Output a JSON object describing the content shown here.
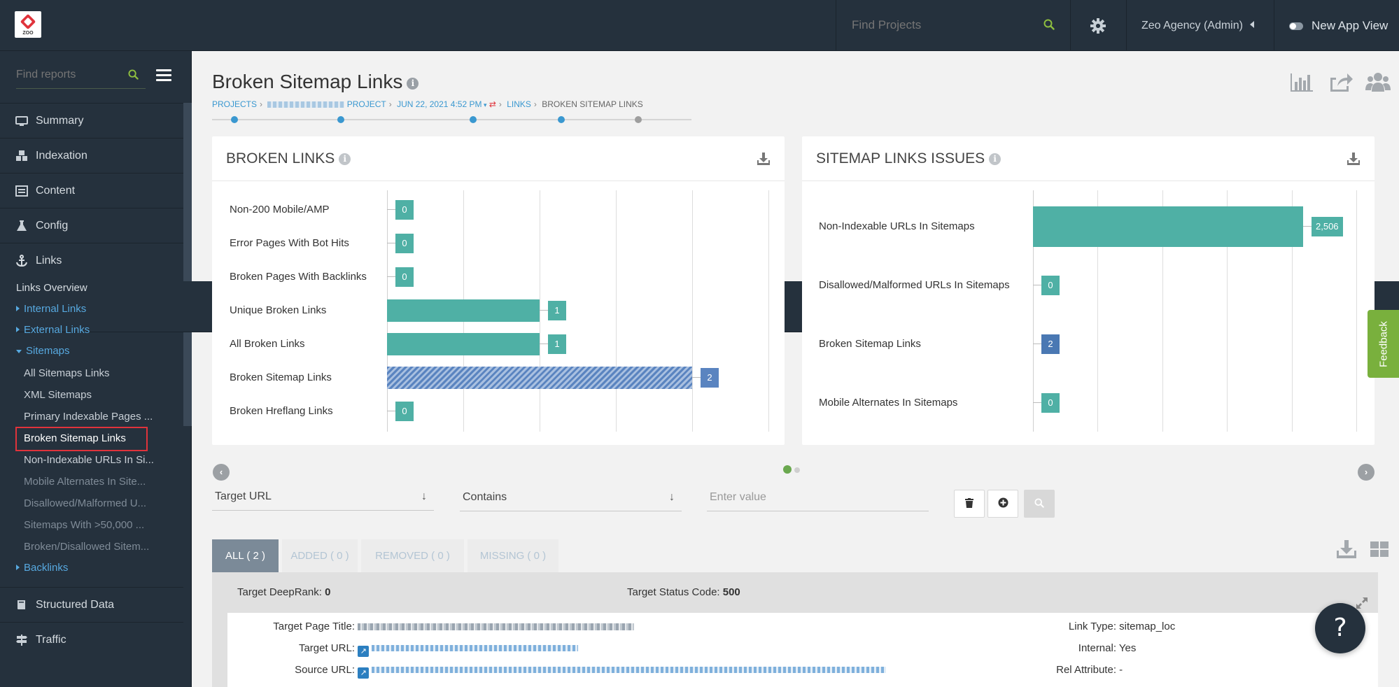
{
  "app": {
    "logo_text": "ZOO",
    "top_search_placeholder": "Find Projects",
    "account": "Zeo Agency (Admin)",
    "new_app_view": "New App View"
  },
  "sidebar": {
    "search_placeholder": "Find reports",
    "sections": {
      "summary": "Summary",
      "indexation": "Indexation",
      "content": "Content",
      "config": "Config",
      "links": "Links",
      "structured": "Structured Data",
      "traffic": "Traffic"
    },
    "links_overview": "Links Overview",
    "internal_links": "Internal Links",
    "external_links": "External Links",
    "sitemaps": "Sitemaps",
    "sitemap_items": [
      "All Sitemaps Links",
      "XML Sitemaps",
      "Primary Indexable Pages ...",
      "Broken Sitemap Links",
      "Non-Indexable URLs In Si...",
      "Mobile Alternates In Site...",
      "Disallowed/Malformed U...",
      "Sitemaps With >50,000 ...",
      "Broken/Disallowed Sitem..."
    ],
    "backlinks": "Backlinks"
  },
  "page": {
    "title": "Broken Sitemap Links",
    "breadcrumb": {
      "projects": "PROJECTS",
      "project": "PROJECT",
      "date": "JUN 22, 2021 4:52 PM",
      "links": "LINKS",
      "current": "BROKEN SITEMAP LINKS"
    }
  },
  "chart_data": [
    {
      "type": "bar",
      "title": "BROKEN LINKS",
      "categories": [
        "Non-200 Mobile/AMP",
        "Error Pages With Bot Hits",
        "Broken Pages With Backlinks",
        "Unique Broken Links",
        "All Broken Links",
        "Broken Sitemap Links",
        "Broken Hreflang Links"
      ],
      "values": [
        0,
        0,
        0,
        1,
        1,
        2,
        0
      ],
      "value_labels": [
        "0",
        "0",
        "0",
        "1",
        "1",
        "2",
        "0"
      ],
      "highlighted": "Broken Sitemap Links",
      "xlim": [
        0,
        2.5
      ],
      "grid": true,
      "colors": {
        "bar": "#4fb0a5",
        "highlight": "#5a84c0"
      }
    },
    {
      "type": "bar",
      "title": "SITEMAP LINKS ISSUES",
      "categories": [
        "Non-Indexable URLs In Sitemaps",
        "Disallowed/Malformed URLs In Sitemaps",
        "Broken Sitemap Links",
        "Mobile Alternates In Sitemaps"
      ],
      "values": [
        2506,
        0,
        2,
        0
      ],
      "value_labels": [
        "2,506",
        "0",
        "2",
        "0"
      ],
      "highlighted": "Broken Sitemap Links",
      "xlim": [
        0,
        3000
      ],
      "grid": true,
      "colors": {
        "bar": "#4fb0a5",
        "highlight": "#4a78b3"
      }
    }
  ],
  "filters": {
    "field": "Target URL",
    "operator": "Contains",
    "value_placeholder": "Enter value"
  },
  "tabs": [
    {
      "label": "ALL ( 2 )"
    },
    {
      "label": "ADDED ( 0 )"
    },
    {
      "label": "REMOVED ( 0 )"
    },
    {
      "label": "MISSING ( 0 )"
    }
  ],
  "result": {
    "deeprank_label": "Target DeepRank:",
    "deeprank_value": "0",
    "status_label": "Target Status Code:",
    "status_value": "500",
    "page_title_label": "Target Page Title:",
    "target_url_label": "Target URL:",
    "source_url_label": "Source URL:",
    "link_type_label": "Link Type:",
    "link_type_value": "sitemap_loc",
    "internal_label": "Internal:",
    "internal_value": "Yes",
    "rel_label": "Rel Attribute:",
    "rel_value": "-"
  },
  "feedback": "Feedback",
  "help": "?"
}
